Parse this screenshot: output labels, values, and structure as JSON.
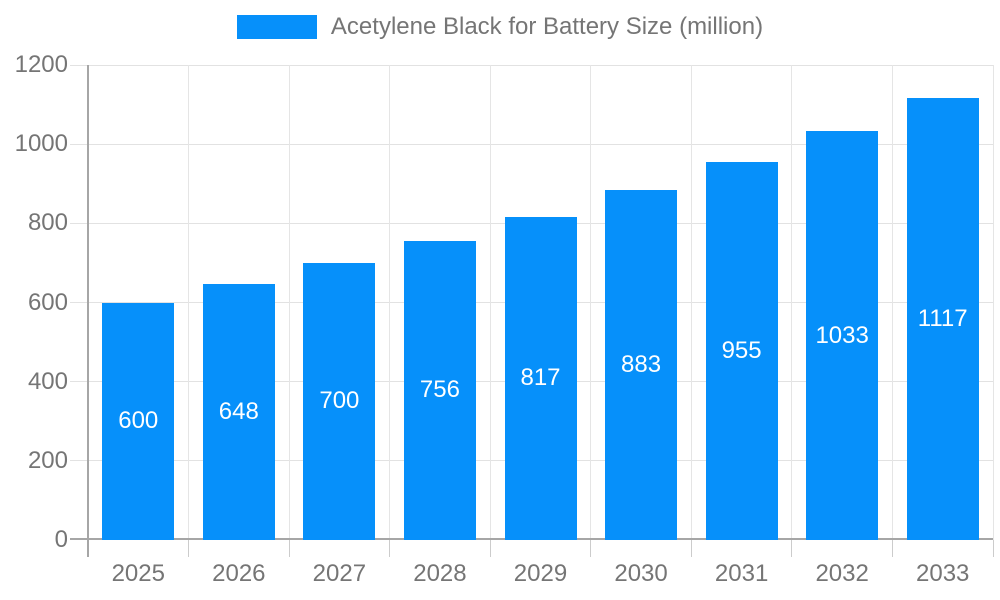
{
  "legend": {
    "label": "Acetylene Black for Battery Size (million)"
  },
  "chart_data": {
    "type": "bar",
    "title": "Acetylene Black for Battery Size (million)",
    "categories": [
      "2025",
      "2026",
      "2027",
      "2028",
      "2029",
      "2030",
      "2031",
      "2032",
      "2033"
    ],
    "series": [
      {
        "name": "Acetylene Black for Battery Size (million)",
        "values": [
          600,
          648,
          700,
          756,
          817,
          883,
          955,
          1033,
          1117
        ]
      }
    ],
    "value_labels": [
      "600",
      "648",
      "700",
      "756",
      "817",
      "883",
      "955",
      "1033",
      "1117"
    ],
    "xlabel": "",
    "ylabel": "",
    "ylim": [
      0,
      1200
    ],
    "yticks": [
      0,
      200,
      400,
      600,
      800,
      1000,
      1200
    ],
    "grid": true,
    "legend_position": "top-center",
    "colors": {
      "bar": "#0690fa",
      "value_label": "#ffffff",
      "axis_text": "#757575",
      "gridline": "#e2e2e2",
      "axis_line": "#a6a6a6",
      "background": "#ffffff"
    }
  }
}
